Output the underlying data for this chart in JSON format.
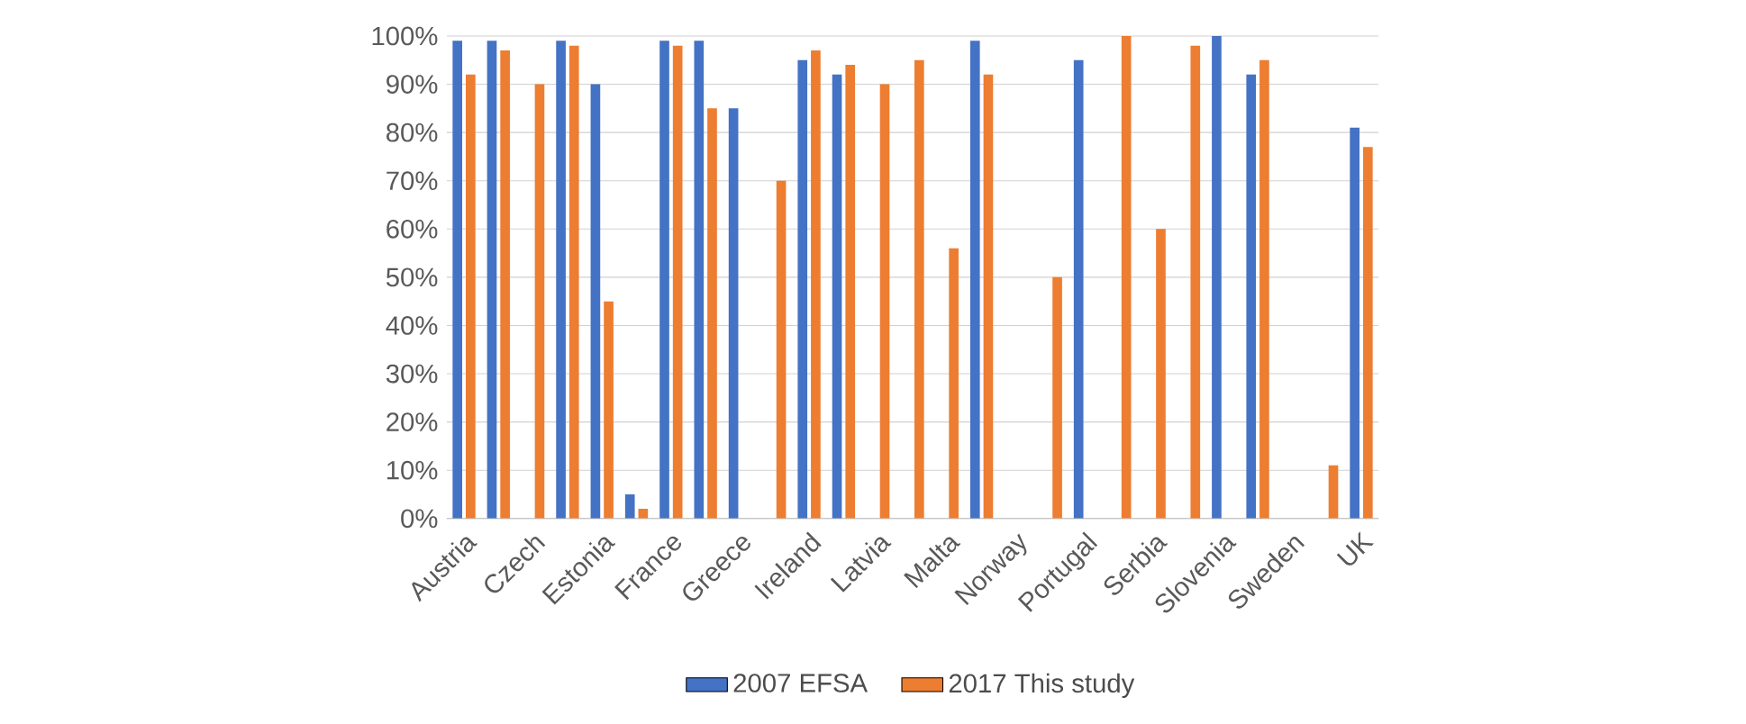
{
  "chart_data": {
    "type": "bar",
    "categories": [
      "Austria",
      null,
      "Czech",
      null,
      "Estonia",
      null,
      "France",
      null,
      "Greece",
      null,
      "Ireland",
      null,
      "Latvia",
      null,
      "Malta",
      null,
      "Norway",
      null,
      "Portugal",
      null,
      "Serbia",
      null,
      "Slovenia",
      null,
      "Sweden",
      null,
      "UK"
    ],
    "series": [
      {
        "name": "2007 EFSA",
        "color": "#4472c4",
        "values": [
          99,
          99,
          null,
          99,
          90,
          5,
          99,
          99,
          85,
          null,
          95,
          92,
          null,
          null,
          null,
          99,
          null,
          null,
          95,
          null,
          null,
          null,
          100,
          92,
          null,
          null,
          81
        ]
      },
      {
        "name": "2017 This study",
        "color": "#ed7d31",
        "values": [
          92,
          97,
          90,
          98,
          45,
          2,
          98,
          85,
          null,
          70,
          97,
          94,
          90,
          95,
          56,
          92,
          null,
          50,
          null,
          100,
          60,
          98,
          null,
          95,
          null,
          11,
          77
        ]
      }
    ],
    "ylim": [
      0,
      100
    ],
    "yticks": [
      {
        "value": 0,
        "label": "0%"
      },
      {
        "value": 10,
        "label": "10%"
      },
      {
        "value": 20,
        "label": "20%"
      },
      {
        "value": 30,
        "label": "30%"
      },
      {
        "value": 40,
        "label": "40%"
      },
      {
        "value": 50,
        "label": "50%"
      },
      {
        "value": 60,
        "label": "60%"
      },
      {
        "value": 70,
        "label": "70%"
      },
      {
        "value": 80,
        "label": "80%"
      },
      {
        "value": 90,
        "label": "90%"
      },
      {
        "value": 100,
        "label": "100%"
      }
    ],
    "grid": "y",
    "legend": "bottom"
  }
}
